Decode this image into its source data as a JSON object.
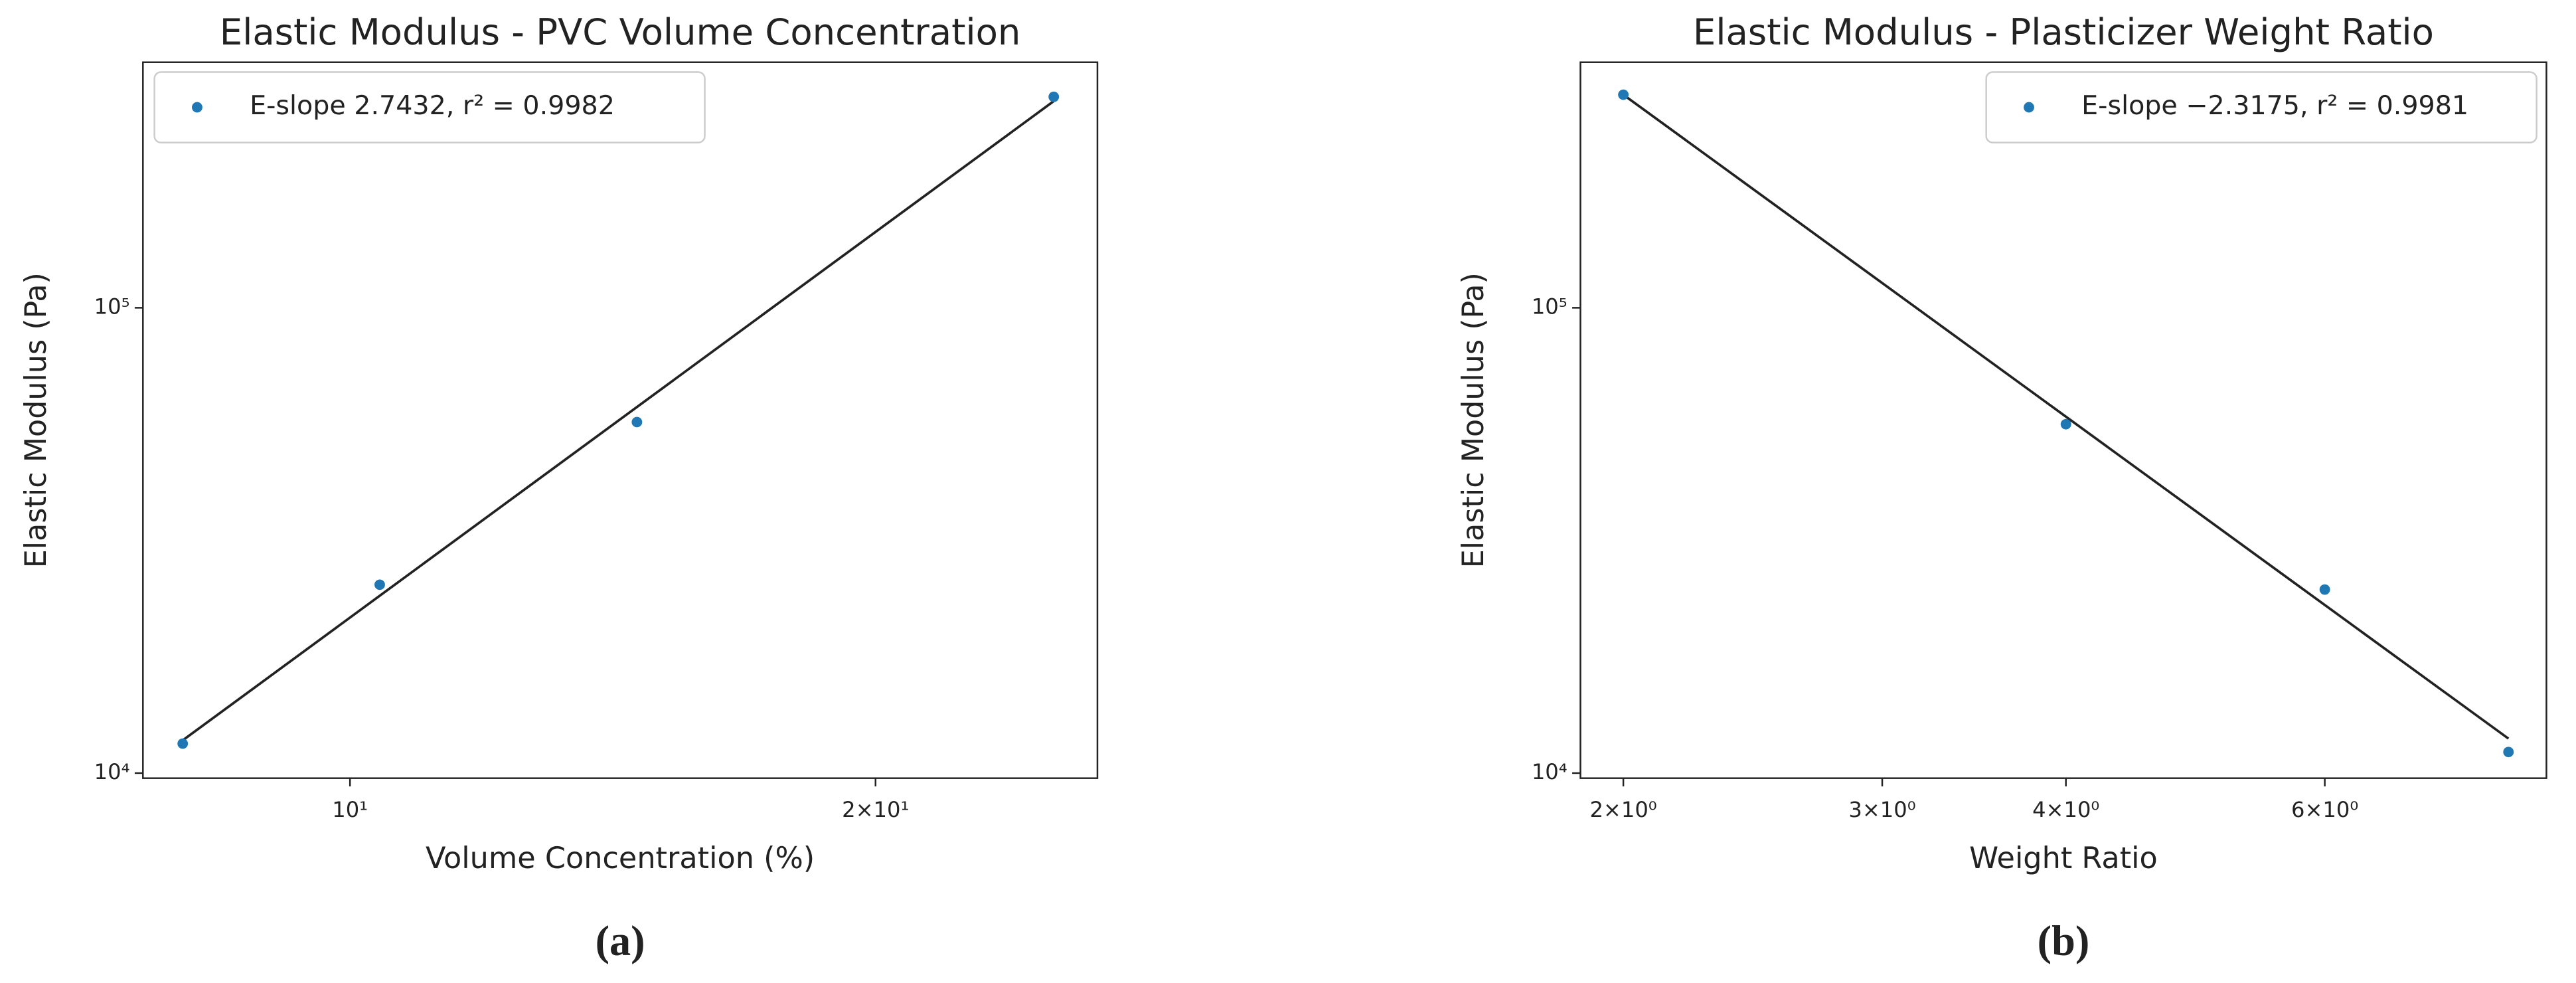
{
  "chart_data": [
    {
      "type": "scatter",
      "title": "Elastic Modulus - PVC Volume Concentration",
      "x_label": "Volume Concentration (%)",
      "y_label": "Elastic Modulus (Pa)",
      "panel_label": "(a)",
      "xscale": "log",
      "yscale": "log",
      "xlim": [
        7.61,
        26.8
      ],
      "ylim": [
        9750,
        337000
      ],
      "xticks": [
        {
          "value": 10,
          "label": "10¹"
        },
        {
          "value": 20,
          "label": "2×10¹"
        }
      ],
      "yticks": [
        {
          "value": 10000,
          "label": "10⁴"
        },
        {
          "value": 100000,
          "label": "10⁵"
        }
      ],
      "legend": "upper left",
      "series": [
        {
          "name": "E-slope 2.7432, r² = 0.9982",
          "color": "#1f77b4",
          "x": [
            8.02,
            10.4,
            14.6,
            25.3
          ],
          "values": [
            11570,
            25400,
            56800,
            284000
          ]
        }
      ],
      "fit_line": {
        "color": "#222222",
        "x": [
          8.02,
          25.3
        ],
        "values": [
          11760,
          278000
        ]
      }
    },
    {
      "type": "scatter",
      "title": "Elastic Modulus - Plasticizer Weight Ratio",
      "x_label": "Weight Ratio",
      "y_label": "Elastic Modulus (Pa)",
      "panel_label": "(b)",
      "xscale": "log",
      "yscale": "log",
      "xlim": [
        1.87,
        8.49
      ],
      "ylim": [
        9750,
        337000
      ],
      "xticks": [
        {
          "value": 2,
          "label": "2×10⁰"
        },
        {
          "value": 3,
          "label": "3×10⁰"
        },
        {
          "value": 4,
          "label": "4×10⁰"
        },
        {
          "value": 6,
          "label": "6×10⁰"
        }
      ],
      "yticks": [
        {
          "value": 10000,
          "label": "10⁴"
        },
        {
          "value": 100000,
          "label": "10⁵"
        }
      ],
      "legend": "upper right",
      "series": [
        {
          "name": "E-slope −2.3175, r² = 0.9981",
          "color": "#1f77b4",
          "x": [
            2,
            4,
            6,
            8
          ],
          "values": [
            287000,
            56200,
            24800,
            11100
          ]
        }
      ],
      "fit_line": {
        "color": "#222222",
        "x": [
          2,
          8
        ],
        "values": [
          287000,
          11860
        ]
      }
    }
  ]
}
